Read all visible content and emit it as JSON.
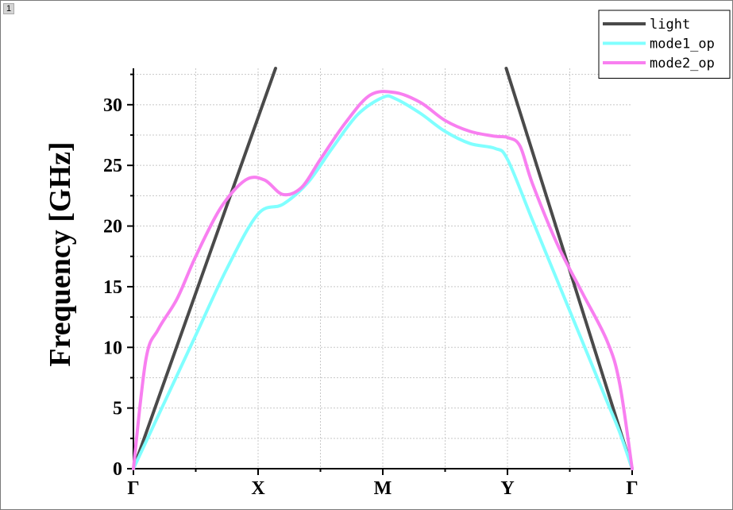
{
  "window": {
    "tab_label": "1"
  },
  "chart_data": {
    "type": "line",
    "title": "",
    "xlabel": "",
    "ylabel": "Frequency [GHz]",
    "categories": [
      "Γ",
      "X",
      "M",
      "Y",
      "Γ"
    ],
    "xlim": [
      0,
      4
    ],
    "ylim": [
      0,
      33
    ],
    "yticks": [
      0,
      5,
      10,
      15,
      20,
      25,
      30
    ],
    "grid": true,
    "legend_position": "top-right",
    "series": [
      {
        "name": "light",
        "color": "#4a4a4a",
        "segments": [
          {
            "x": [
              0,
              1.14
            ],
            "y": [
              0,
              33
            ]
          },
          {
            "x": [
              2.99,
              4
            ],
            "y": [
              33,
              0
            ]
          }
        ]
      },
      {
        "name": "mode1_op",
        "color": "#80ffff",
        "x": [
          0,
          0.25,
          0.5,
          0.75,
          1.0,
          1.2,
          1.4,
          1.6,
          1.8,
          2.0,
          2.1,
          2.3,
          2.5,
          2.7,
          2.9,
          3.0,
          3.2,
          3.4,
          3.6,
          3.8,
          3.9,
          4.0
        ],
        "y": [
          0,
          5.5,
          11,
          16.5,
          21,
          21.8,
          23.6,
          26.5,
          29.2,
          30.6,
          30.5,
          29.3,
          27.8,
          26.8,
          26.4,
          25.5,
          20.5,
          15.5,
          10.5,
          5.5,
          3,
          0
        ]
      },
      {
        "name": "mode2_op",
        "color": "#f87ff0",
        "x": [
          0,
          0.1,
          0.2,
          0.35,
          0.5,
          0.7,
          0.9,
          1.05,
          1.2,
          1.35,
          1.5,
          1.7,
          1.9,
          2.1,
          2.3,
          2.5,
          2.7,
          2.9,
          3.0,
          3.1,
          3.2,
          3.4,
          3.6,
          3.8,
          3.9,
          4.0
        ],
        "y": [
          0,
          9,
          11.5,
          14,
          17.5,
          21.5,
          23.8,
          23.8,
          22.6,
          23.2,
          25.5,
          28.5,
          30.8,
          31.0,
          30.2,
          28.7,
          27.8,
          27.4,
          27.3,
          26.6,
          23.5,
          18.5,
          14.5,
          10.5,
          7,
          0
        ]
      }
    ]
  }
}
